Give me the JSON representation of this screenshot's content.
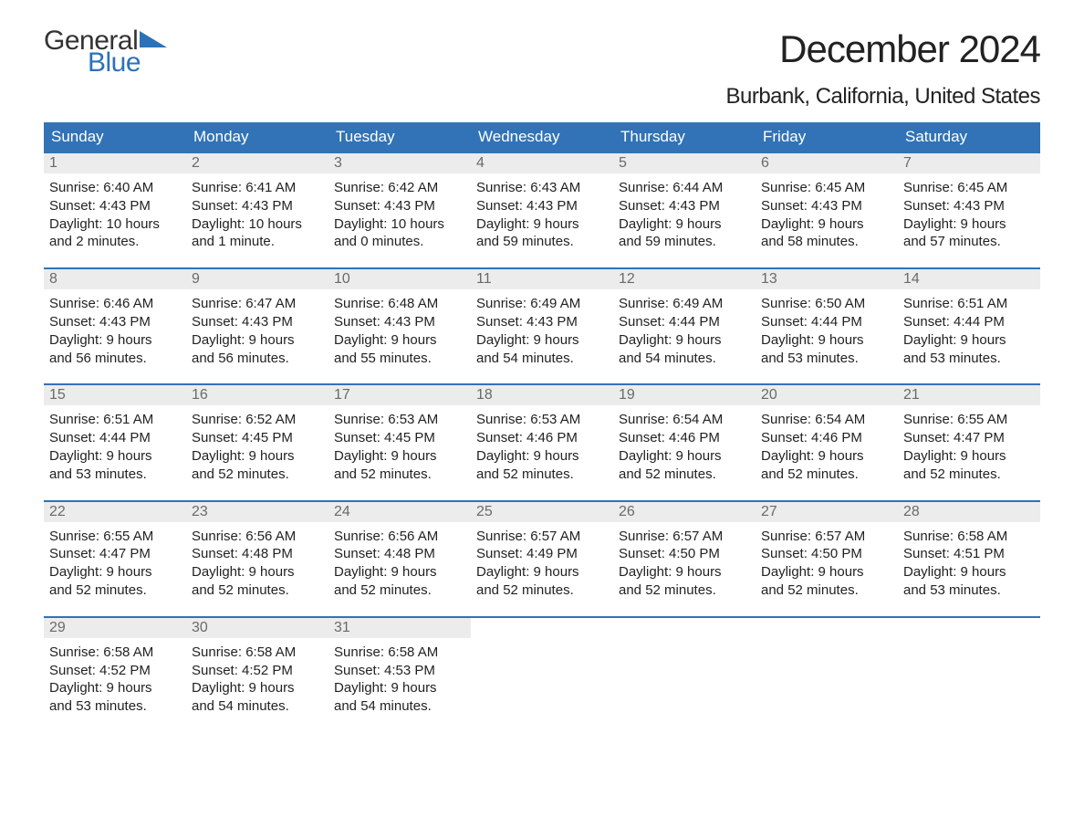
{
  "brand": {
    "general": "General",
    "blue": "Blue",
    "general_color": "#333333",
    "blue_color": "#2b72b9",
    "flag_color": "#2b72b9"
  },
  "title": "December 2024",
  "location": "Burbank, California, United States",
  "colors": {
    "header_bg": "#3173b6",
    "header_text": "#ffffff",
    "week_border": "#3173b6",
    "daynum_bg": "#ececec",
    "daynum_text": "#6a6a6a",
    "body_text": "#222222",
    "page_bg": "#ffffff"
  },
  "typography": {
    "title_fontsize": 42,
    "location_fontsize": 24,
    "dow_fontsize": 17,
    "daynum_fontsize": 16,
    "body_fontsize": 15,
    "logo_fontsize": 30
  },
  "days_of_week": [
    "Sunday",
    "Monday",
    "Tuesday",
    "Wednesday",
    "Thursday",
    "Friday",
    "Saturday"
  ],
  "weeks": [
    [
      {
        "n": "1",
        "sr": "Sunrise: 6:40 AM",
        "ss": "Sunset: 4:43 PM",
        "d1": "Daylight: 10 hours",
        "d2": "and 2 minutes."
      },
      {
        "n": "2",
        "sr": "Sunrise: 6:41 AM",
        "ss": "Sunset: 4:43 PM",
        "d1": "Daylight: 10 hours",
        "d2": "and 1 minute."
      },
      {
        "n": "3",
        "sr": "Sunrise: 6:42 AM",
        "ss": "Sunset: 4:43 PM",
        "d1": "Daylight: 10 hours",
        "d2": "and 0 minutes."
      },
      {
        "n": "4",
        "sr": "Sunrise: 6:43 AM",
        "ss": "Sunset: 4:43 PM",
        "d1": "Daylight: 9 hours",
        "d2": "and 59 minutes."
      },
      {
        "n": "5",
        "sr": "Sunrise: 6:44 AM",
        "ss": "Sunset: 4:43 PM",
        "d1": "Daylight: 9 hours",
        "d2": "and 59 minutes."
      },
      {
        "n": "6",
        "sr": "Sunrise: 6:45 AM",
        "ss": "Sunset: 4:43 PM",
        "d1": "Daylight: 9 hours",
        "d2": "and 58 minutes."
      },
      {
        "n": "7",
        "sr": "Sunrise: 6:45 AM",
        "ss": "Sunset: 4:43 PM",
        "d1": "Daylight: 9 hours",
        "d2": "and 57 minutes."
      }
    ],
    [
      {
        "n": "8",
        "sr": "Sunrise: 6:46 AM",
        "ss": "Sunset: 4:43 PM",
        "d1": "Daylight: 9 hours",
        "d2": "and 56 minutes."
      },
      {
        "n": "9",
        "sr": "Sunrise: 6:47 AM",
        "ss": "Sunset: 4:43 PM",
        "d1": "Daylight: 9 hours",
        "d2": "and 56 minutes."
      },
      {
        "n": "10",
        "sr": "Sunrise: 6:48 AM",
        "ss": "Sunset: 4:43 PM",
        "d1": "Daylight: 9 hours",
        "d2": "and 55 minutes."
      },
      {
        "n": "11",
        "sr": "Sunrise: 6:49 AM",
        "ss": "Sunset: 4:43 PM",
        "d1": "Daylight: 9 hours",
        "d2": "and 54 minutes."
      },
      {
        "n": "12",
        "sr": "Sunrise: 6:49 AM",
        "ss": "Sunset: 4:44 PM",
        "d1": "Daylight: 9 hours",
        "d2": "and 54 minutes."
      },
      {
        "n": "13",
        "sr": "Sunrise: 6:50 AM",
        "ss": "Sunset: 4:44 PM",
        "d1": "Daylight: 9 hours",
        "d2": "and 53 minutes."
      },
      {
        "n": "14",
        "sr": "Sunrise: 6:51 AM",
        "ss": "Sunset: 4:44 PM",
        "d1": "Daylight: 9 hours",
        "d2": "and 53 minutes."
      }
    ],
    [
      {
        "n": "15",
        "sr": "Sunrise: 6:51 AM",
        "ss": "Sunset: 4:44 PM",
        "d1": "Daylight: 9 hours",
        "d2": "and 53 minutes."
      },
      {
        "n": "16",
        "sr": "Sunrise: 6:52 AM",
        "ss": "Sunset: 4:45 PM",
        "d1": "Daylight: 9 hours",
        "d2": "and 52 minutes."
      },
      {
        "n": "17",
        "sr": "Sunrise: 6:53 AM",
        "ss": "Sunset: 4:45 PM",
        "d1": "Daylight: 9 hours",
        "d2": "and 52 minutes."
      },
      {
        "n": "18",
        "sr": "Sunrise: 6:53 AM",
        "ss": "Sunset: 4:46 PM",
        "d1": "Daylight: 9 hours",
        "d2": "and 52 minutes."
      },
      {
        "n": "19",
        "sr": "Sunrise: 6:54 AM",
        "ss": "Sunset: 4:46 PM",
        "d1": "Daylight: 9 hours",
        "d2": "and 52 minutes."
      },
      {
        "n": "20",
        "sr": "Sunrise: 6:54 AM",
        "ss": "Sunset: 4:46 PM",
        "d1": "Daylight: 9 hours",
        "d2": "and 52 minutes."
      },
      {
        "n": "21",
        "sr": "Sunrise: 6:55 AM",
        "ss": "Sunset: 4:47 PM",
        "d1": "Daylight: 9 hours",
        "d2": "and 52 minutes."
      }
    ],
    [
      {
        "n": "22",
        "sr": "Sunrise: 6:55 AM",
        "ss": "Sunset: 4:47 PM",
        "d1": "Daylight: 9 hours",
        "d2": "and 52 minutes."
      },
      {
        "n": "23",
        "sr": "Sunrise: 6:56 AM",
        "ss": "Sunset: 4:48 PM",
        "d1": "Daylight: 9 hours",
        "d2": "and 52 minutes."
      },
      {
        "n": "24",
        "sr": "Sunrise: 6:56 AM",
        "ss": "Sunset: 4:48 PM",
        "d1": "Daylight: 9 hours",
        "d2": "and 52 minutes."
      },
      {
        "n": "25",
        "sr": "Sunrise: 6:57 AM",
        "ss": "Sunset: 4:49 PM",
        "d1": "Daylight: 9 hours",
        "d2": "and 52 minutes."
      },
      {
        "n": "26",
        "sr": "Sunrise: 6:57 AM",
        "ss": "Sunset: 4:50 PM",
        "d1": "Daylight: 9 hours",
        "d2": "and 52 minutes."
      },
      {
        "n": "27",
        "sr": "Sunrise: 6:57 AM",
        "ss": "Sunset: 4:50 PM",
        "d1": "Daylight: 9 hours",
        "d2": "and 52 minutes."
      },
      {
        "n": "28",
        "sr": "Sunrise: 6:58 AM",
        "ss": "Sunset: 4:51 PM",
        "d1": "Daylight: 9 hours",
        "d2": "and 53 minutes."
      }
    ],
    [
      {
        "n": "29",
        "sr": "Sunrise: 6:58 AM",
        "ss": "Sunset: 4:52 PM",
        "d1": "Daylight: 9 hours",
        "d2": "and 53 minutes."
      },
      {
        "n": "30",
        "sr": "Sunrise: 6:58 AM",
        "ss": "Sunset: 4:52 PM",
        "d1": "Daylight: 9 hours",
        "d2": "and 54 minutes."
      },
      {
        "n": "31",
        "sr": "Sunrise: 6:58 AM",
        "ss": "Sunset: 4:53 PM",
        "d1": "Daylight: 9 hours",
        "d2": "and 54 minutes."
      },
      {
        "empty": true
      },
      {
        "empty": true
      },
      {
        "empty": true
      },
      {
        "empty": true
      }
    ]
  ]
}
